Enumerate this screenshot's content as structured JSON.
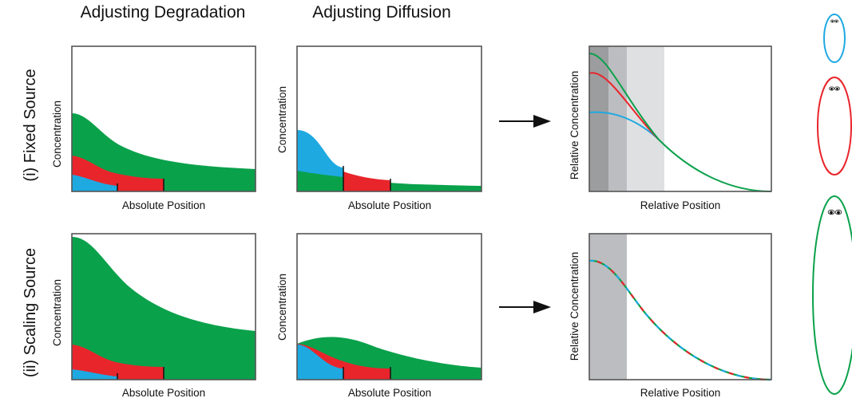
{
  "titles": {
    "col1": "Adjusting Degradation",
    "col2": "Adjusting Diffusion"
  },
  "rows": {
    "row1": "(i) Fixed Source",
    "row2": "(ii) Scaling Source"
  },
  "axes": {
    "concentration": "Concentration",
    "absolute_position": "Absolute Position",
    "relative_concentration": "Relative Concentration",
    "relative_position": "Relative Position"
  },
  "colors": {
    "blue": "#1ea9e1",
    "red": "#e8252b",
    "green": "#0aa14b",
    "frame": "#555555",
    "arrow": "#111111",
    "shade_dark": "#9c9d9f",
    "shade_mid": "#bcbdc0",
    "shade_light": "#dfe0e2"
  }
}
